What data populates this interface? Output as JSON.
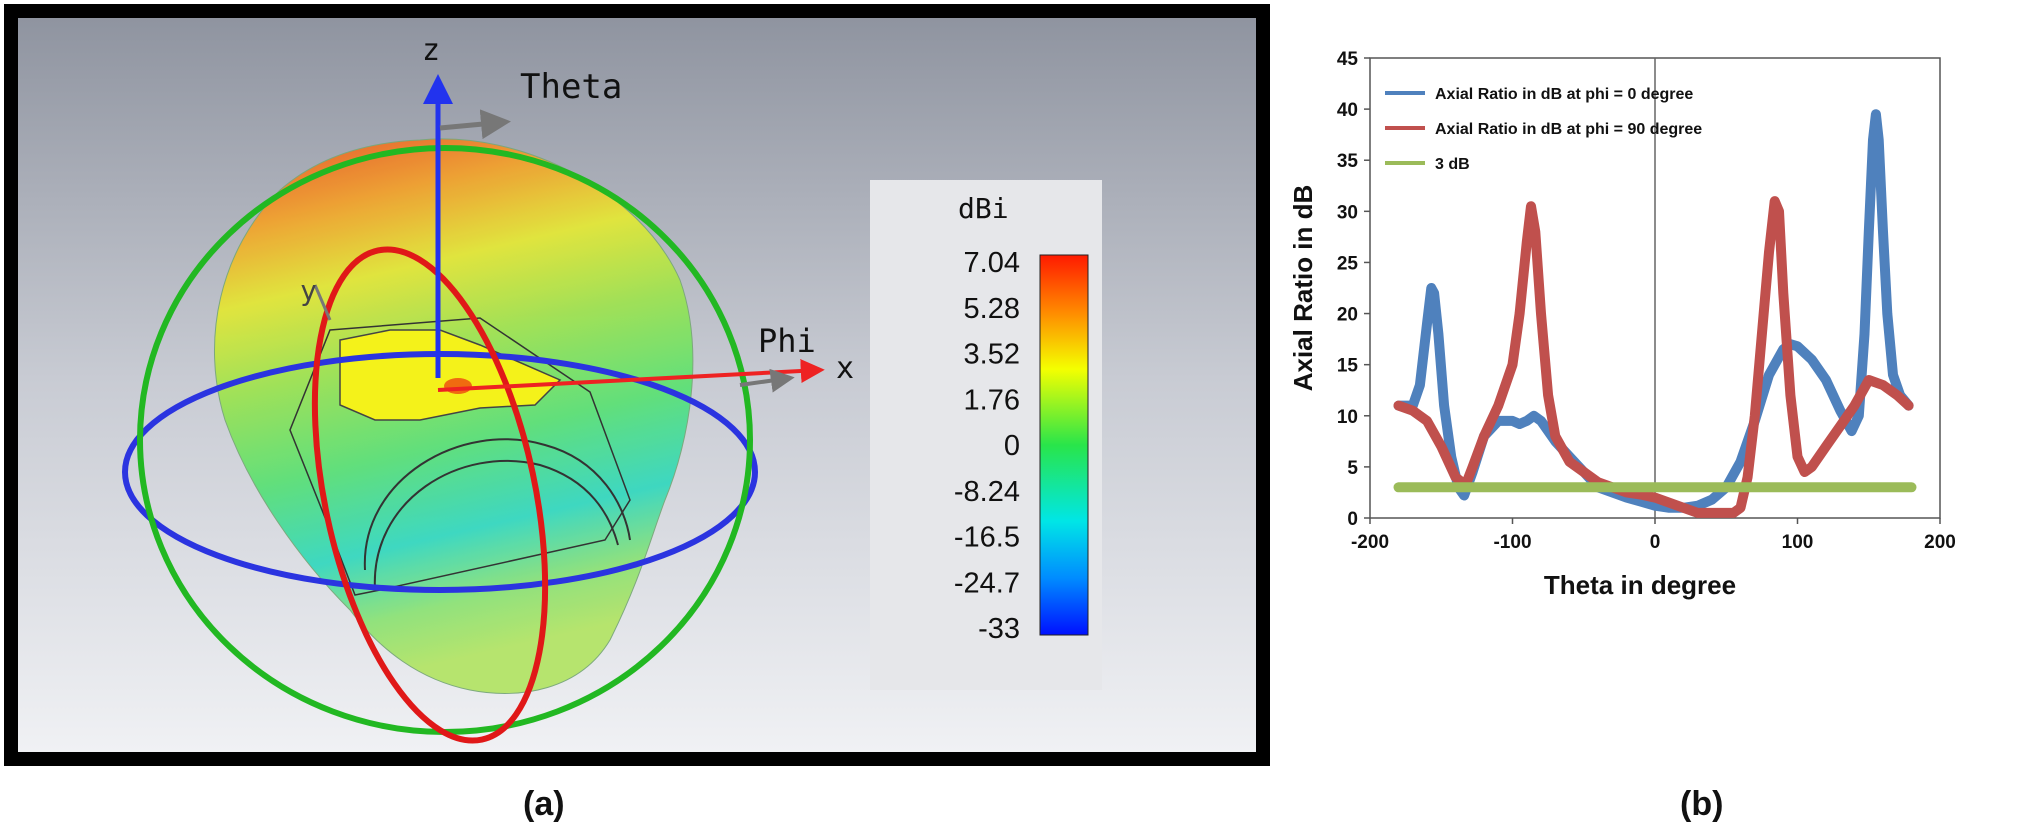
{
  "figure_a": {
    "caption": "(a)",
    "axis_labels": {
      "z": "z",
      "x": "x",
      "y": "y",
      "theta": "Theta",
      "phi": "Phi"
    },
    "colorbar": {
      "unit": "dBi",
      "ticks": [
        "7.04",
        "5.28",
        "3.52",
        "1.76",
        "0",
        "-8.24",
        "-16.5",
        "-24.7",
        "-33"
      ]
    }
  },
  "figure_b": {
    "caption": "(b)"
  },
  "chart_data": {
    "type": "line",
    "xlabel": "Theta in degree",
    "ylabel": "Axial Ratio in dB",
    "xlim": [
      -200,
      200
    ],
    "ylim": [
      0,
      45
    ],
    "xticks": [
      -200,
      -100,
      0,
      100,
      200
    ],
    "yticks": [
      0,
      5,
      10,
      15,
      20,
      25,
      30,
      35,
      40,
      45
    ],
    "grid": false,
    "legend_position": "top-left",
    "colors": {
      "series0": "#4f81bd",
      "series1": "#c0504d",
      "series2": "#9bbb59"
    },
    "series": [
      {
        "name": "Axial Ratio in dB at phi = 0 degree",
        "x": [
          -180,
          -170,
          -165,
          -160,
          -157,
          -155,
          -152,
          -148,
          -143,
          -138,
          -134,
          -128,
          -120,
          -110,
          -100,
          -95,
          -90,
          -85,
          -80,
          -70,
          -60,
          -50,
          -40,
          -30,
          -20,
          -10,
          0,
          10,
          20,
          30,
          40,
          50,
          60,
          70,
          80,
          90,
          95,
          100,
          110,
          120,
          130,
          138,
          143,
          147,
          150,
          153,
          155,
          157,
          160,
          163,
          167,
          172,
          178
        ],
        "values": [
          11,
          11,
          13,
          19,
          22.5,
          22,
          18,
          11,
          6,
          3,
          2.2,
          4.5,
          8,
          9.5,
          9.5,
          9.2,
          9.5,
          10,
          9.5,
          7.5,
          6,
          4.5,
          3,
          2.5,
          2,
          1.6,
          1.2,
          1,
          1,
          1.2,
          1.8,
          3,
          5.5,
          9.5,
          14,
          16.5,
          17,
          16.8,
          15.5,
          13.5,
          10.5,
          8.5,
          10,
          18,
          28,
          37,
          39.5,
          37,
          28,
          20,
          14,
          12,
          11
        ]
      },
      {
        "name": "Axial Ratio in dB at phi = 90 degree",
        "x": [
          -180,
          -170,
          -160,
          -150,
          -140,
          -133,
          -128,
          -120,
          -110,
          -100,
          -95,
          -90,
          -87,
          -84,
          -80,
          -75,
          -70,
          -60,
          -50,
          -40,
          -30,
          -20,
          -10,
          0,
          10,
          20,
          30,
          40,
          50,
          55,
          60,
          65,
          70,
          75,
          80,
          84,
          87,
          90,
          95,
          100,
          105,
          110,
          120,
          130,
          140,
          150,
          160,
          170,
          178
        ],
        "values": [
          11,
          10.5,
          9.5,
          7,
          4,
          3.2,
          5,
          8,
          11,
          15,
          20,
          27,
          30.5,
          28,
          20,
          12,
          8,
          5.5,
          4.5,
          3.5,
          3,
          2.5,
          2.3,
          2,
          1.5,
          1,
          0.5,
          0.5,
          0.5,
          0.5,
          1,
          4,
          10,
          18,
          26,
          31,
          30,
          22,
          12,
          6,
          4.5,
          5,
          7,
          9,
          11,
          13.5,
          13,
          12,
          11
        ]
      },
      {
        "name": "3 dB",
        "x": [
          -180,
          180
        ],
        "values": [
          3,
          3
        ]
      }
    ]
  }
}
